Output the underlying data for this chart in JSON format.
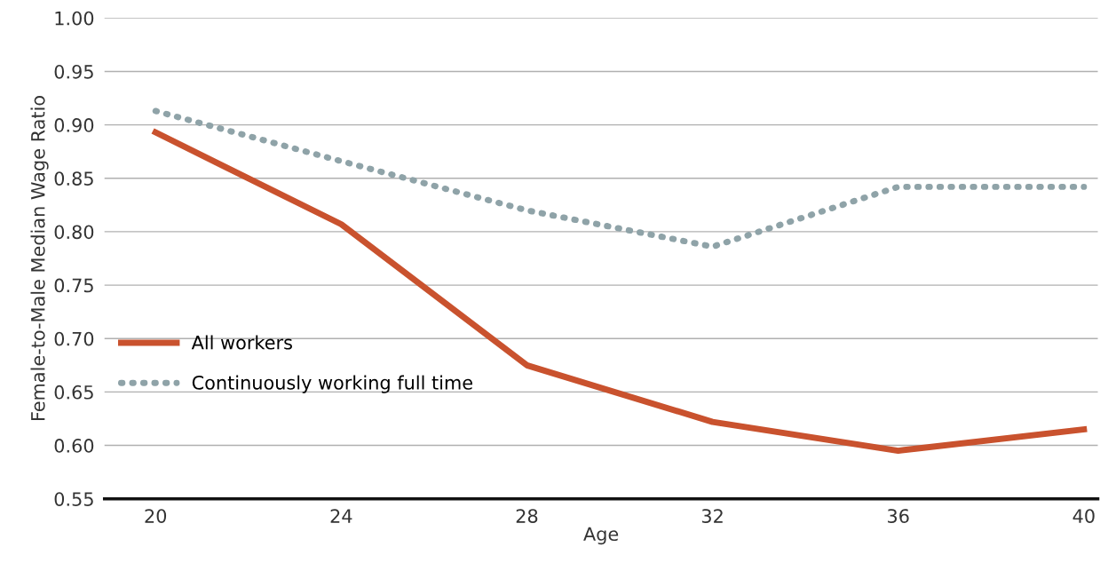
{
  "chart_data": {
    "type": "line",
    "xlabel": "Age",
    "ylabel": "Female-to-Male Median Wage Ratio",
    "x": [
      20,
      24,
      28,
      32,
      36,
      40
    ],
    "series": [
      {
        "name": "All workers",
        "color": "#c9522e",
        "values": [
          0.893,
          0.807,
          0.675,
          0.622,
          0.595,
          0.615
        ],
        "line_style": "solid"
      },
      {
        "name": "Continuously working full time",
        "color": "#8fa3a8",
        "values": [
          0.913,
          0.866,
          0.82,
          0.786,
          0.842,
          0.842
        ],
        "line_style": "dotted"
      }
    ],
    "xlim": [
      18.9,
      40.3
    ],
    "xticks": [
      20,
      24,
      28,
      32,
      36,
      40
    ],
    "ylim": [
      0.55,
      1.0
    ],
    "yticks": [
      {
        "value": 0.55,
        "label": "0.55"
      },
      {
        "value": 0.6,
        "label": "0.60"
      },
      {
        "value": 0.65,
        "label": "0.65"
      },
      {
        "value": 0.7,
        "label": "0.70"
      },
      {
        "value": 0.75,
        "label": "0.75"
      },
      {
        "value": 0.8,
        "label": "0.80"
      },
      {
        "value": 0.85,
        "label": "0.85"
      },
      {
        "value": 0.9,
        "label": "0.90"
      },
      {
        "value": 0.95,
        "label": "0.95"
      },
      {
        "value": 1.0,
        "label": "1.00"
      }
    ],
    "grid": "y",
    "legend": "left",
    "marker": "none"
  }
}
